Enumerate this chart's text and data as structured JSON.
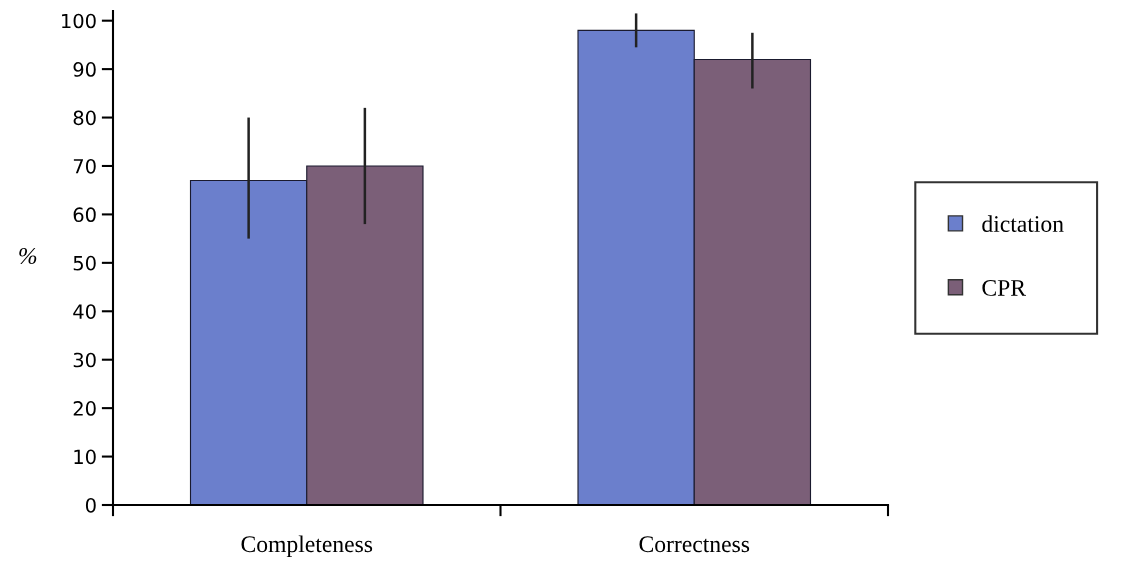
{
  "chart_data": {
    "type": "bar",
    "ylabel": "%",
    "categories": [
      "Completeness",
      "Correctness"
    ],
    "series": [
      {
        "name": "dictation",
        "color": "#6b7fcc",
        "values": [
          67,
          98
        ],
        "errors": [
          [
            55,
            80
          ],
          [
            94.5,
            101.5
          ]
        ]
      },
      {
        "name": "CPR",
        "color": "#7b5f78",
        "values": [
          70,
          92
        ],
        "errors": [
          [
            58,
            82
          ],
          [
            86,
            97.5
          ]
        ]
      }
    ],
    "ylim": [
      0,
      102
    ],
    "yticks": [
      0,
      10,
      20,
      30,
      40,
      50,
      60,
      70,
      80,
      90,
      100
    ],
    "grid": false,
    "legend": "right"
  }
}
